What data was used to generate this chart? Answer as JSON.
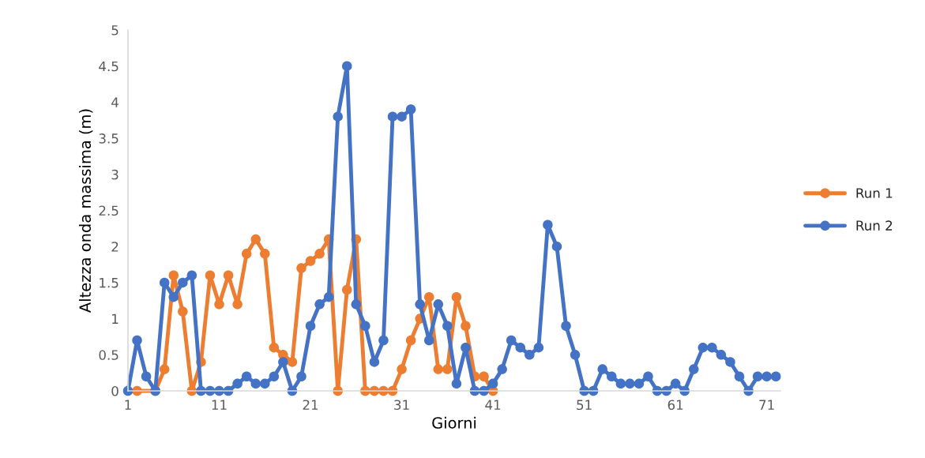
{
  "chart_data": {
    "type": "line",
    "xlabel": "Giorni",
    "ylabel": "Altezza onda massima (m)",
    "xlim": [
      1,
      72.5
    ],
    "xticks": [
      1,
      11,
      21,
      31,
      41,
      51,
      61,
      71
    ],
    "ylim": [
      0,
      5
    ],
    "yticks": [
      0,
      0.5,
      1,
      1.5,
      2,
      2.5,
      3,
      3.5,
      4,
      4.5,
      5
    ],
    "grid": false,
    "legend": "right",
    "marker": "circle",
    "line_style": "solid",
    "series": [
      {
        "name": "Run 1",
        "color": "#ed7d31",
        "x": [
          2,
          3,
          4,
          5,
          6,
          7,
          8,
          9,
          10,
          11,
          12,
          13,
          14,
          15,
          16,
          17,
          18,
          19,
          20,
          21,
          22,
          23,
          24,
          25,
          26,
          27,
          28,
          29,
          30,
          31,
          32,
          33,
          34,
          35,
          36,
          37,
          38,
          39,
          40,
          41
        ],
        "values": [
          0,
          null,
          0,
          0.3,
          1.6,
          1.1,
          0,
          0.4,
          1.6,
          1.2,
          1.6,
          1.2,
          1.9,
          2.1,
          1.9,
          0.6,
          0.5,
          0.4,
          1.7,
          1.8,
          1.9,
          2.1,
          0,
          1.4,
          2.1,
          0,
          0,
          0,
          0,
          0.3,
          0.7,
          1.0,
          1.3,
          0.3,
          0.3,
          1.3,
          0.9,
          0.2,
          0.2,
          0
        ]
      },
      {
        "name": "Run 2",
        "color": "#4472c4",
        "x": [
          1,
          2,
          3,
          4,
          5,
          6,
          7,
          8,
          9,
          10,
          11,
          12,
          13,
          14,
          15,
          16,
          17,
          18,
          19,
          20,
          21,
          22,
          23,
          24,
          25,
          26,
          27,
          28,
          29,
          30,
          31,
          32,
          33,
          34,
          35,
          36,
          37,
          38,
          39,
          40,
          41,
          42,
          43,
          44,
          45,
          46,
          47,
          48,
          49,
          50,
          51,
          52,
          53,
          54,
          55,
          56,
          57,
          58,
          59,
          60,
          61,
          62,
          63,
          64,
          65,
          66,
          67,
          68,
          69,
          70,
          71,
          72
        ],
        "values": [
          0,
          0.7,
          0.2,
          0,
          1.5,
          1.3,
          1.5,
          1.6,
          0,
          0,
          0,
          0,
          0.1,
          0.2,
          0.1,
          0.1,
          0.2,
          0.4,
          0,
          0.2,
          0.9,
          1.2,
          1.3,
          3.8,
          4.5,
          1.2,
          0.9,
          0.4,
          0.7,
          3.8,
          3.8,
          3.9,
          1.2,
          0.7,
          1.2,
          0.9,
          0.1,
          0.6,
          0,
          0,
          0.1,
          0.3,
          0.7,
          0.6,
          0.5,
          0.6,
          2.3,
          2.0,
          0.9,
          0.5,
          0,
          0,
          0.3,
          0.2,
          0.1,
          0.1,
          0.1,
          0.2,
          0,
          0,
          0.1,
          0,
          0.3,
          0.6,
          0.6,
          0.5,
          0.4,
          0.2,
          0,
          0.2,
          0.2,
          0.2
        ]
      }
    ]
  }
}
